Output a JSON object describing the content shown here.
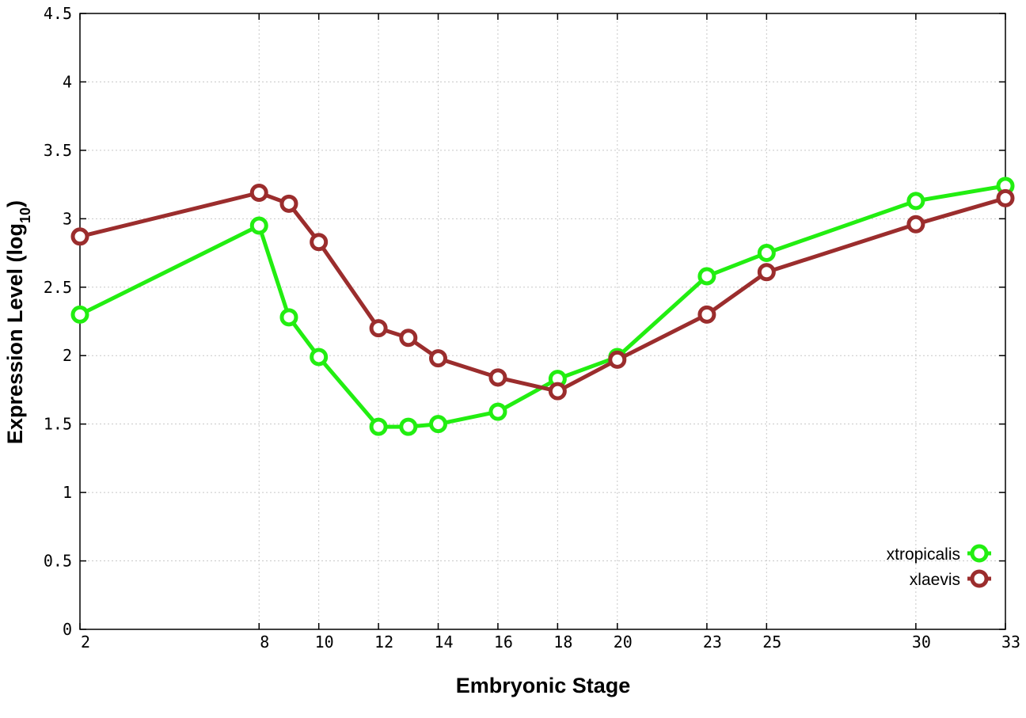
{
  "chart_data": {
    "type": "line",
    "xlabel": "Embryonic Stage",
    "ylabel_main": "Expression Level (log",
    "ylabel_sub": "10",
    "ylabel_close": ")",
    "xlim": [
      2,
      33
    ],
    "ylim": [
      0,
      4.5
    ],
    "x_ticks": [
      2,
      8,
      10,
      12,
      14,
      16,
      18,
      20,
      23,
      25,
      30,
      33
    ],
    "x_tick_labels": [
      "2",
      "8",
      "10",
      "12",
      "14",
      "16",
      "18",
      "20",
      "23",
      "25",
      "30",
      "33"
    ],
    "y_ticks": [
      0,
      0.5,
      1,
      1.5,
      2,
      2.5,
      3,
      3.5,
      4,
      4.5
    ],
    "y_tick_labels": [
      "0",
      "0.5",
      "1",
      "1.5",
      "2",
      "2.5",
      "3",
      "3.5",
      "4",
      "4.5"
    ],
    "grid": true,
    "legend_position": "bottom-right",
    "x": [
      2,
      8,
      9,
      10,
      12,
      13,
      14,
      16,
      18,
      20,
      23,
      25,
      30,
      33
    ],
    "series": [
      {
        "name": "xtropicalis",
        "color": "#22ee11",
        "marker": "open-circle",
        "values": [
          2.3,
          2.95,
          2.28,
          1.99,
          1.48,
          1.48,
          1.5,
          1.59,
          1.83,
          1.99,
          2.58,
          2.75,
          3.13,
          3.24
        ]
      },
      {
        "name": "xlaevis",
        "color": "#9b2d2d",
        "marker": "open-circle",
        "values": [
          2.87,
          3.19,
          3.11,
          2.83,
          2.2,
          2.13,
          1.98,
          1.84,
          1.74,
          1.97,
          2.3,
          2.61,
          2.96,
          3.15
        ]
      }
    ]
  }
}
